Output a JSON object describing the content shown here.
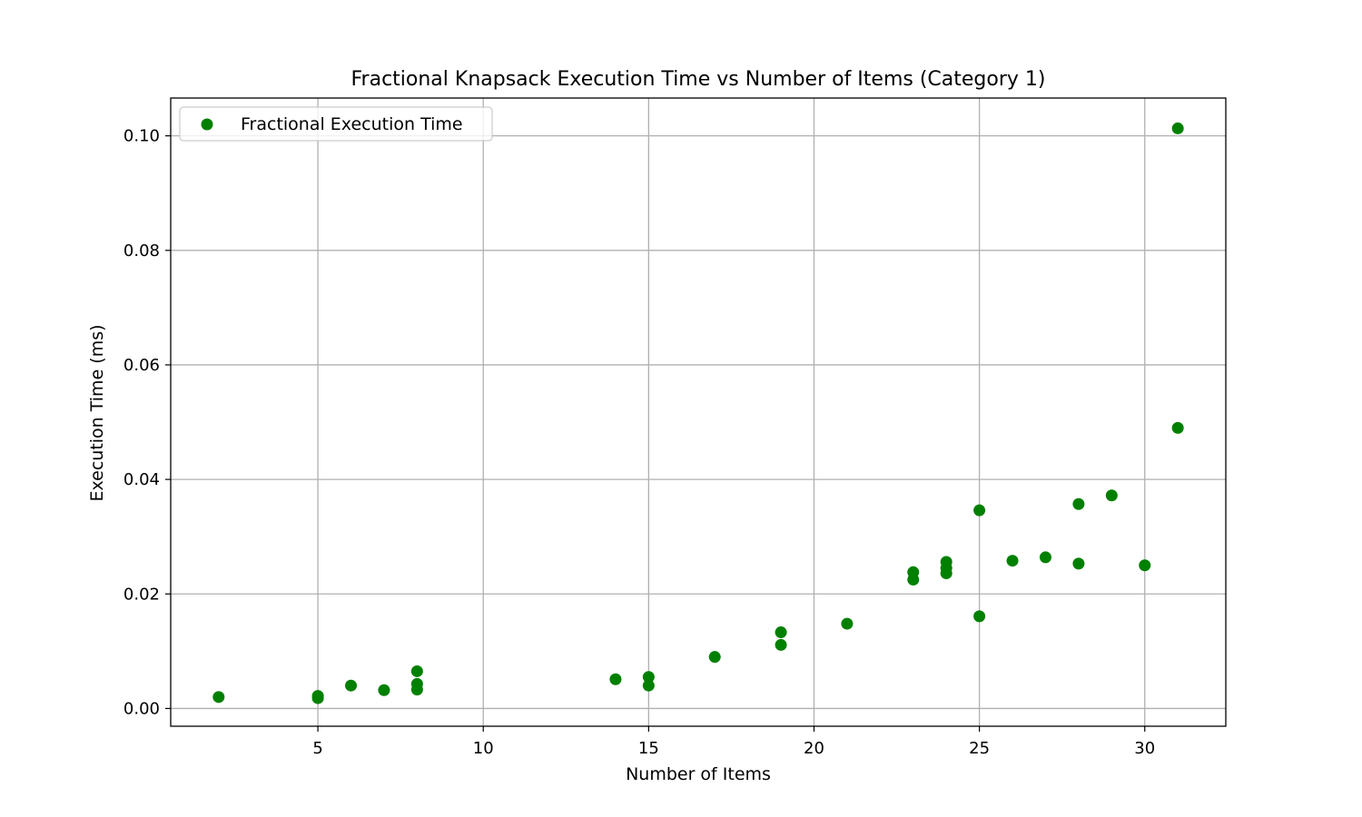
{
  "chart_data": {
    "type": "scatter",
    "title": "Fractional Knapsack Execution Time vs Number of Items (Category 1)",
    "xlabel": "Number of Items",
    "ylabel": "Execution Time (ms)",
    "xlim": [
      0.55,
      32.45
    ],
    "ylim": [
      -0.0031,
      0.1066
    ],
    "xticks": [
      5,
      10,
      15,
      20,
      25,
      30
    ],
    "xtick_labels": [
      "5",
      "10",
      "15",
      "20",
      "25",
      "30"
    ],
    "yticks": [
      0.0,
      0.02,
      0.04,
      0.06,
      0.08,
      0.1
    ],
    "ytick_labels": [
      "0.00",
      "0.02",
      "0.04",
      "0.06",
      "0.08",
      "0.10"
    ],
    "grid": true,
    "legend": {
      "position": "top-left"
    },
    "series": [
      {
        "name": "Fractional Execution Time",
        "color": "#008000",
        "points": [
          {
            "x": 2,
            "y": 0.002
          },
          {
            "x": 5,
            "y": 0.0018
          },
          {
            "x": 5,
            "y": 0.0022
          },
          {
            "x": 6,
            "y": 0.004
          },
          {
            "x": 7,
            "y": 0.0032
          },
          {
            "x": 8,
            "y": 0.0033
          },
          {
            "x": 8,
            "y": 0.0043
          },
          {
            "x": 8,
            "y": 0.0065
          },
          {
            "x": 14,
            "y": 0.0051
          },
          {
            "x": 15,
            "y": 0.004
          },
          {
            "x": 15,
            "y": 0.0055
          },
          {
            "x": 17,
            "y": 0.009
          },
          {
            "x": 19,
            "y": 0.0111
          },
          {
            "x": 19,
            "y": 0.0133
          },
          {
            "x": 21,
            "y": 0.0148
          },
          {
            "x": 23,
            "y": 0.0225
          },
          {
            "x": 23,
            "y": 0.0238
          },
          {
            "x": 24,
            "y": 0.0236
          },
          {
            "x": 24,
            "y": 0.0245
          },
          {
            "x": 24,
            "y": 0.0256
          },
          {
            "x": 25,
            "y": 0.0161
          },
          {
            "x": 25,
            "y": 0.0346
          },
          {
            "x": 26,
            "y": 0.0258
          },
          {
            "x": 27,
            "y": 0.0264
          },
          {
            "x": 28,
            "y": 0.0253
          },
          {
            "x": 28,
            "y": 0.0357
          },
          {
            "x": 29,
            "y": 0.0372
          },
          {
            "x": 30,
            "y": 0.025
          },
          {
            "x": 31,
            "y": 0.049
          },
          {
            "x": 31,
            "y": 0.1013
          }
        ]
      }
    ]
  }
}
